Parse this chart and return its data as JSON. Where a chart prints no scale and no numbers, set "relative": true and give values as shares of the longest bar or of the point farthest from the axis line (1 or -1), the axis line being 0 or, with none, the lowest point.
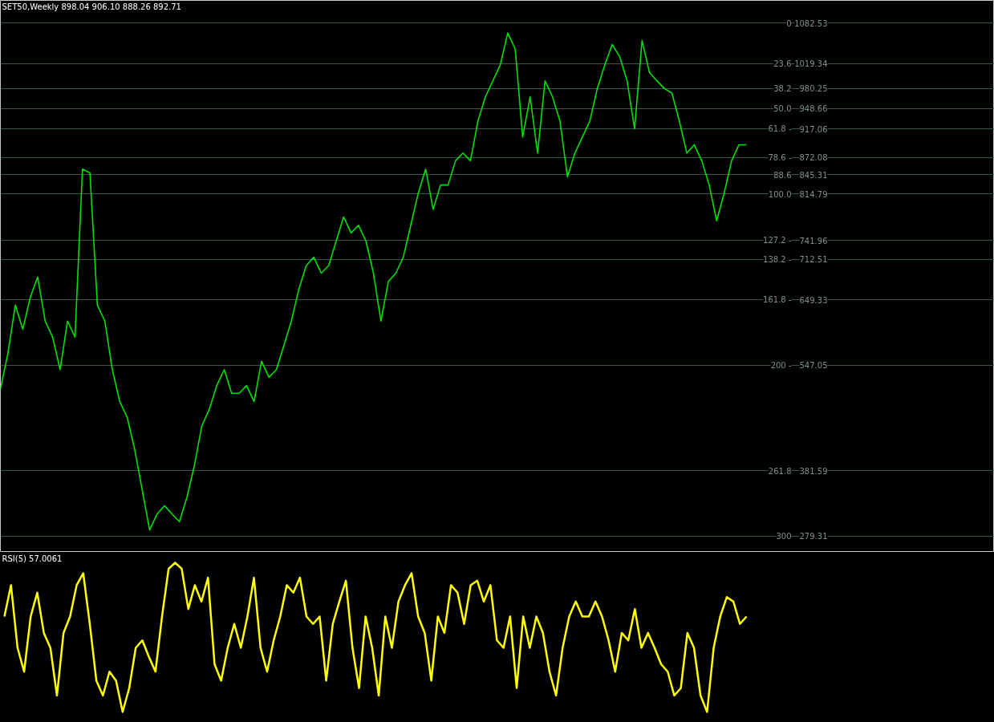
{
  "chart_data": [
    {
      "type": "line",
      "title": "SET50,Weekly 898.04 906.10 888.26 892.71",
      "ylim": [
        254,
        1118
      ],
      "grid": "y",
      "y2lim": [
        309.45,
        -13.25
      ],
      "y2ticks": [
        0,
        23.6,
        38.2,
        {
          "value": 50,
          "label": "50.0"
        },
        {
          "value": 61.8,
          "label": "61.8 -"
        },
        {
          "value": 78.6,
          "label": "78.6 -"
        },
        88.6,
        {
          "value": 100,
          "label": "100.0"
        },
        {
          "value": 127.2,
          "label": "127.2 -"
        },
        {
          "value": 138.2,
          "label": "138.2 -"
        },
        {
          "value": 161.8,
          "label": "161.8 -"
        },
        {
          "value": 200,
          "label": "200 -"
        },
        261.8,
        300
      ],
      "categories": [
        null,
        null,
        null,
        null,
        null,
        null,
        null,
        null,
        null,
        null,
        null,
        null,
        null,
        null,
        null,
        null,
        null,
        null,
        null,
        null,
        null,
        null,
        null,
        null,
        null,
        null,
        null,
        null,
        null,
        null,
        null,
        null,
        null,
        null,
        null,
        null,
        null,
        null,
        null,
        null,
        null,
        null,
        null,
        null,
        null,
        null,
        null,
        null,
        null,
        null,
        null,
        null,
        null,
        null,
        null,
        null,
        null,
        null,
        null,
        null,
        null,
        null,
        null,
        null,
        null,
        null,
        null,
        null,
        null,
        null,
        null,
        null,
        null,
        null,
        null,
        null,
        null,
        null,
        null,
        null,
        null,
        null,
        null,
        null,
        null,
        null,
        null,
        null,
        null,
        null,
        null,
        null,
        null,
        null,
        null,
        null,
        null,
        null,
        null,
        null,
        null
      ],
      "series": [
        {
          "color": "#00e000",
          "values": [
            509,
            565,
            641,
            603,
            653,
            685,
            616,
            591,
            540,
            616,
            591,
            854,
            848,
            641,
            616,
            540,
            490,
            465,
            415,
            352,
            289,
            314,
            327,
            314,
            302,
            340,
            390,
            452,
            478,
            515,
            540,
            503,
            503,
            515,
            490,
            553,
            528,
            540,
            578,
            616,
            666,
            703,
            716,
            691,
            703,
            741,
            779,
            754,
            766,
            741,
            691,
            616,
            678,
            691,
            716,
            766,
            816,
            854,
            791,
            829,
            829,
            867,
            879,
            867,
            929,
            967,
            992,
            1017,
            1067,
            1042,
            904,
            967,
            879,
            992,
            967,
            929,
            842,
            879,
            904,
            929,
            980,
            1017,
            1049,
            1030,
            992,
            917,
            1055,
            1005,
            992,
            980,
            973,
            929,
            879,
            892,
            867,
            829,
            773,
            816,
            867,
            892,
            892
          ]
        }
      ],
      "yticks": [
        1082.53,
        1019.34,
        980.25,
        948.66,
        917.06,
        872.08,
        845.31,
        814.79,
        741.96,
        712.51,
        649.33,
        547.05,
        381.59,
        279.31
      ]
    },
    {
      "type": "line",
      "title": "RSI(5) 57.0061",
      "relative": true,
      "categories": [
        null,
        null,
        null,
        null,
        null,
        null,
        null,
        null,
        null,
        null,
        null,
        null,
        null,
        null,
        null,
        null,
        null,
        null,
        null,
        null,
        null,
        null,
        null,
        null,
        null,
        null,
        null,
        null,
        null,
        null,
        null,
        null,
        null,
        null,
        null,
        null,
        null,
        null,
        null,
        null,
        null,
        null,
        null,
        null,
        null,
        null,
        null,
        null,
        null,
        null,
        null,
        null,
        null,
        null,
        null,
        null,
        null,
        null,
        null,
        null,
        null,
        null,
        null,
        null,
        null,
        null,
        null,
        null,
        null,
        null,
        null,
        null,
        null,
        null,
        null,
        null,
        null,
        null,
        null,
        null,
        null,
        null,
        null,
        null,
        null,
        null,
        null,
        null,
        null,
        null,
        null,
        null,
        null,
        null,
        null,
        null,
        null,
        null,
        null,
        null,
        null,
        null,
        null,
        null,
        null,
        null,
        null,
        null,
        null,
        null,
        null,
        null,
        null,
        null
      ],
      "series": [
        {
          "color": "#ffff00",
          "values": [
            0.64,
            0.85,
            0.43,
            0.27,
            0.64,
            0.8,
            0.53,
            0.43,
            0.11,
            0.53,
            0.64,
            0.85,
            0.93,
            0.59,
            0.21,
            0.11,
            0.27,
            0.21,
            0,
            0.16,
            0.43,
            0.48,
            0.37,
            0.27,
            0.64,
            0.96,
            1,
            0.96,
            0.69,
            0.85,
            0.74,
            0.9,
            0.32,
            0.21,
            0.43,
            0.59,
            0.43,
            0.64,
            0.9,
            0.43,
            0.27,
            0.48,
            0.64,
            0.85,
            0.8,
            0.9,
            0.64,
            0.59,
            0.64,
            0.21,
            0.59,
            0.74,
            0.88,
            0.43,
            0.16,
            0.64,
            0.43,
            0.11,
            0.64,
            0.43,
            0.74,
            0.85,
            0.93,
            0.64,
            0.53,
            0.21,
            0.64,
            0.53,
            0.85,
            0.8,
            0.59,
            0.85,
            0.88,
            0.74,
            0.85,
            0.48,
            0.43,
            0.64,
            0.16,
            0.64,
            0.43,
            0.64,
            0.53,
            0.27,
            0.11,
            0.43,
            0.64,
            0.74,
            0.64,
            0.64,
            0.74,
            0.64,
            0.48,
            0.27,
            0.53,
            0.48,
            0.69,
            0.43,
            0.53,
            0.43,
            0.32,
            0.27,
            0.11,
            0.16,
            0.53,
            0.43,
            0.11,
            0,
            0.43,
            0.64,
            0.77,
            0.74,
            0.59,
            0.64
          ]
        }
      ]
    }
  ]
}
